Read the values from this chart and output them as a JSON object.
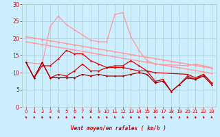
{
  "xlabel": "Vent moyen/en rafales ( km/h )",
  "bg_color": "#cceeff",
  "grid_color": "#aacccc",
  "xlim": [
    -0.5,
    23.5
  ],
  "ylim": [
    0,
    30
  ],
  "yticks": [
    0,
    5,
    10,
    15,
    20,
    25,
    30
  ],
  "xticks": [
    0,
    1,
    2,
    3,
    4,
    5,
    6,
    7,
    8,
    9,
    10,
    11,
    12,
    13,
    14,
    15,
    16,
    17,
    18,
    19,
    20,
    21,
    22,
    23
  ],
  "lines": [
    {
      "x": [
        0,
        1,
        2,
        3,
        4,
        5,
        6,
        7,
        8,
        9,
        10,
        11,
        12,
        13,
        14,
        15,
        16,
        17,
        18,
        19,
        20,
        21,
        22,
        23
      ],
      "y": [
        20.5,
        20.1,
        19.7,
        19.3,
        18.9,
        18.5,
        18.1,
        17.7,
        17.3,
        16.9,
        16.5,
        16.1,
        15.7,
        15.3,
        14.9,
        14.5,
        14.1,
        13.7,
        13.3,
        12.9,
        12.5,
        12.1,
        11.7,
        11.3
      ],
      "color": "#ff9999",
      "lw": 1.0,
      "marker": "D",
      "ms": 1.5
    },
    {
      "x": [
        0,
        1,
        2,
        3,
        4,
        5,
        6,
        7,
        8,
        9,
        10,
        11,
        12,
        13,
        14,
        15,
        16,
        17,
        18,
        19,
        20,
        21,
        22,
        23
      ],
      "y": [
        19.0,
        18.6,
        18.2,
        17.8,
        17.4,
        17.0,
        16.6,
        16.2,
        15.8,
        15.4,
        15.0,
        14.6,
        14.2,
        13.8,
        13.4,
        13.0,
        12.6,
        12.2,
        11.8,
        11.4,
        11.0,
        10.6,
        10.2,
        9.8
      ],
      "color": "#ff9999",
      "lw": 1.0,
      "marker": "D",
      "ms": 1.5
    },
    {
      "x": [
        0,
        2,
        3,
        4,
        5,
        6,
        7,
        8,
        9,
        10,
        11,
        12,
        13,
        14,
        15,
        16,
        20,
        21,
        22,
        23
      ],
      "y": [
        13.0,
        12.5,
        23.5,
        26.5,
        24.0,
        22.5,
        21.0,
        19.5,
        19.0,
        19.0,
        27.0,
        27.5,
        20.5,
        16.5,
        13.5,
        12.5,
        12.0,
        12.5,
        12.0,
        11.5
      ],
      "color": "#ff9999",
      "lw": 0.9,
      "marker": "D",
      "ms": 1.5
    },
    {
      "x": [
        0,
        1,
        2,
        3,
        4,
        5,
        6,
        7,
        8,
        9,
        10,
        11,
        12,
        13,
        14,
        15,
        16,
        20,
        21,
        22,
        23
      ],
      "y": [
        13.0,
        8.5,
        12.0,
        12.0,
        14.0,
        16.5,
        15.5,
        15.5,
        13.5,
        12.5,
        11.5,
        12.0,
        12.0,
        13.5,
        12.0,
        10.5,
        10.0,
        9.5,
        8.5,
        9.5,
        7.0
      ],
      "color": "#dd0000",
      "lw": 0.9,
      "marker": "D",
      "ms": 1.5
    },
    {
      "x": [
        0,
        1,
        2,
        3,
        4,
        5,
        6,
        7,
        8,
        9,
        10,
        11,
        12,
        13,
        14,
        15,
        16,
        17,
        18,
        19,
        20,
        21,
        22,
        23
      ],
      "y": [
        13.0,
        8.5,
        13.0,
        8.5,
        9.5,
        9.0,
        10.5,
        12.5,
        10.5,
        10.5,
        11.5,
        11.5,
        11.5,
        11.0,
        10.5,
        10.5,
        7.5,
        8.0,
        4.5,
        6.5,
        9.0,
        8.0,
        9.5,
        7.0
      ],
      "color": "#dd0000",
      "lw": 0.9,
      "marker": "D",
      "ms": 1.5
    },
    {
      "x": [
        0,
        1,
        2,
        3,
        4,
        5,
        6,
        7,
        8,
        9,
        10,
        11,
        12,
        13,
        14,
        15,
        16,
        17,
        18,
        19,
        20,
        21,
        22,
        23
      ],
      "y": [
        13.0,
        8.5,
        13.0,
        8.5,
        8.5,
        8.5,
        8.5,
        9.5,
        9.0,
        9.5,
        9.0,
        9.0,
        9.0,
        9.5,
        10.0,
        9.5,
        7.0,
        7.5,
        4.5,
        6.5,
        8.5,
        8.0,
        9.0,
        6.5
      ],
      "color": "#990000",
      "lw": 0.9,
      "marker": "D",
      "ms": 1.5
    }
  ],
  "wind_arrow_color": "#cc0000",
  "xlabel_color": "#cc0000",
  "tick_color": "#cc0000"
}
